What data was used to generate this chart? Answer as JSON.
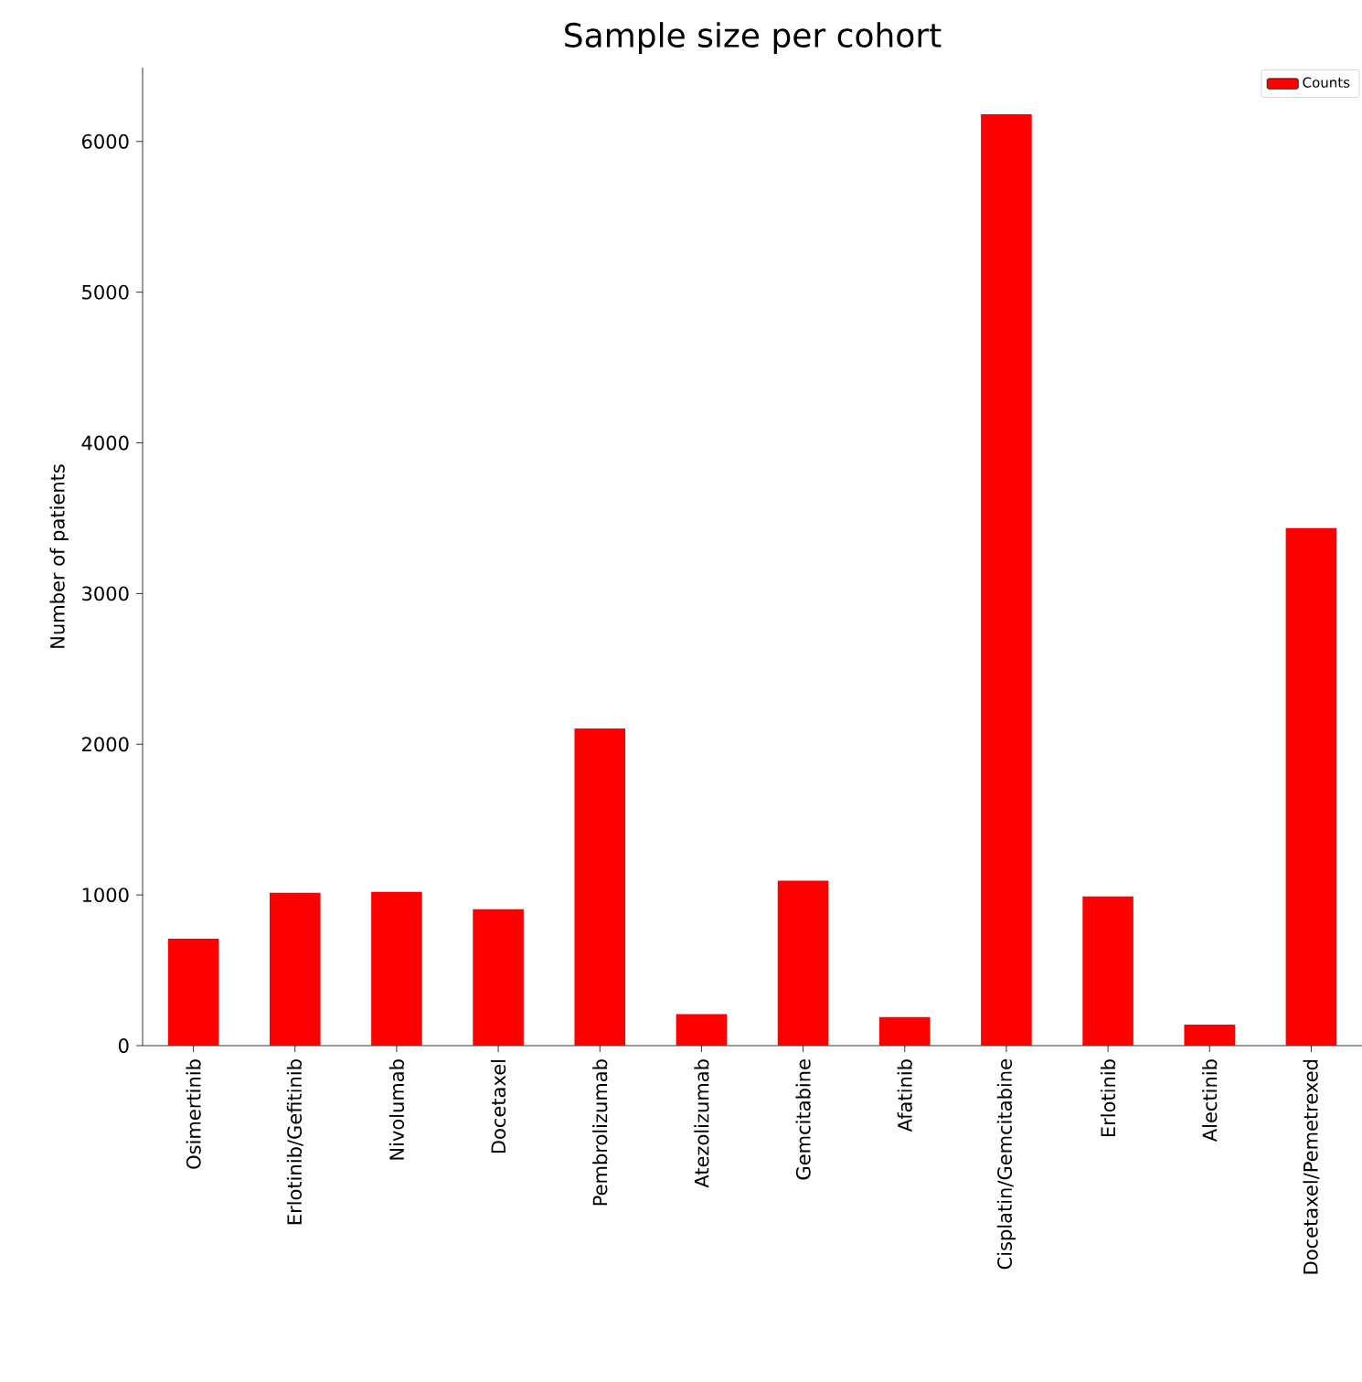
{
  "chart_data": {
    "type": "bar",
    "title": "Sample size per cohort",
    "ylabel": "Number of patients",
    "categories": [
      "Osimertinib",
      "Erlotinib/Gefitinib",
      "Nivolumab",
      "Docetaxel",
      "Pembrolizumab",
      "Atezolizumab",
      "Gemcitabine",
      "Afatinib",
      "Cisplatin/Gemcitabine",
      "Erlotinib",
      "Alectinib",
      "Docetaxel/Pemetrexed"
    ],
    "series": [
      {
        "name": "Counts",
        "color": "#ff0000",
        "values": [
          710,
          1015,
          1020,
          905,
          2105,
          210,
          1095,
          190,
          6180,
          990,
          140,
          3435
        ]
      }
    ],
    "ylim": [
      0,
      6490
    ],
    "yticks": [
      0,
      1000,
      2000,
      3000,
      4000,
      5000,
      6000
    ],
    "grid": false,
    "legend": "top right"
  }
}
